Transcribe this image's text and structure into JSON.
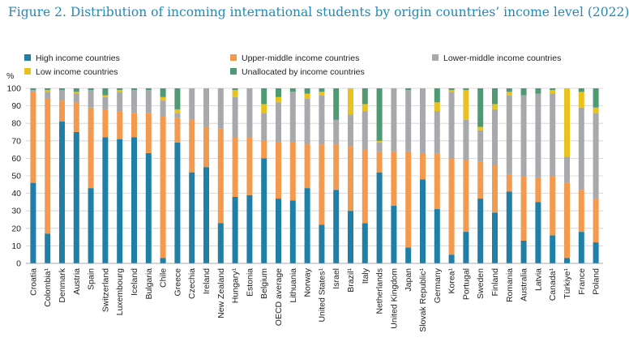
{
  "title": "Figure 2. Distribution of incoming international students by origin countries’ income level (2022)",
  "colors": {
    "High income countries": "#1f7fa6",
    "Upper-middle income countries": "#f39a4e",
    "Lower-middle income countries": "#a7a9ac",
    "Low income countries": "#e8c21e",
    "Unallocated by income countries": "#4e9a72"
  },
  "chart_data": {
    "type": "bar",
    "stacked": true,
    "ylabel": "%",
    "ylim": [
      0,
      100
    ],
    "yticks": [
      0,
      10,
      20,
      30,
      40,
      50,
      60,
      70,
      80,
      90,
      100
    ],
    "grid": true,
    "legend_position": "top",
    "categories": [
      "Croatia",
      "Colombia¹",
      "Denmark",
      "Austria",
      "Spain",
      "Switzerland",
      "Luxembourg",
      "Iceland",
      "Bulgaria",
      "Chile",
      "Greece",
      "Czechia",
      "Ireland",
      "New Zealand",
      "Hungary¹",
      "Estonia",
      "Belgium",
      "OECD average",
      "Lithuania",
      "Norway",
      "United States¹",
      "Israel",
      "Brazil¹",
      "Italy",
      "Netherlands",
      "United Kingdom",
      "Japan",
      "Slovak Republic¹",
      "Germany",
      "Korea¹",
      "Portugal",
      "Sweden",
      "Finland",
      "Romania",
      "Australia",
      "Latvia",
      "Canada¹",
      "Türkiye¹",
      "France",
      "Poland"
    ],
    "series": [
      {
        "name": "High income countries",
        "values": [
          46,
          17,
          81,
          75,
          43,
          72,
          71,
          72,
          63,
          3,
          69,
          52,
          55,
          23,
          38,
          39,
          60,
          37,
          36,
          43,
          22,
          42,
          30,
          23,
          52,
          33,
          9,
          48,
          31,
          5,
          18,
          37,
          29,
          41,
          13,
          35,
          16,
          3,
          18,
          12
        ]
      },
      {
        "name": "Upper-middle income countries",
        "values": [
          52,
          77,
          12,
          17,
          46,
          16,
          16,
          14,
          23,
          81,
          14,
          30,
          23,
          54,
          34,
          33,
          10,
          32,
          33,
          25,
          46,
          26,
          37,
          42,
          12,
          31,
          55,
          15,
          32,
          55,
          41,
          21,
          27,
          10,
          37,
          14,
          34,
          43,
          24,
          25
        ]
      },
      {
        "name": "Lower-middle income countries",
        "values": [
          1,
          4,
          6,
          5,
          10,
          7,
          11,
          13,
          13,
          9,
          3,
          18,
          22,
          23,
          23,
          28,
          16,
          23,
          29,
          26,
          28,
          14,
          18,
          22,
          5,
          36,
          35,
          37,
          24,
          38,
          23,
          18,
          32,
          45,
          46,
          48,
          47,
          15,
          47,
          49
        ]
      },
      {
        "name": "Low income countries",
        "values": [
          0,
          1,
          0,
          1,
          0,
          1,
          1,
          0,
          0,
          2,
          2,
          0,
          0,
          0,
          4,
          0,
          5,
          3,
          0,
          3,
          2,
          0,
          15,
          4,
          1,
          0,
          0,
          0,
          5,
          1,
          17,
          2,
          3,
          2,
          0,
          0,
          2,
          39,
          9,
          3
        ]
      },
      {
        "name": "Unallocated by income countries",
        "values": [
          1,
          1,
          1,
          2,
          1,
          4,
          1,
          1,
          1,
          5,
          12,
          0,
          0,
          0,
          1,
          0,
          9,
          5,
          2,
          3,
          2,
          18,
          0,
          9,
          30,
          0,
          1,
          0,
          8,
          1,
          1,
          22,
          9,
          2,
          4,
          3,
          1,
          0,
          2,
          11
        ]
      }
    ]
  }
}
